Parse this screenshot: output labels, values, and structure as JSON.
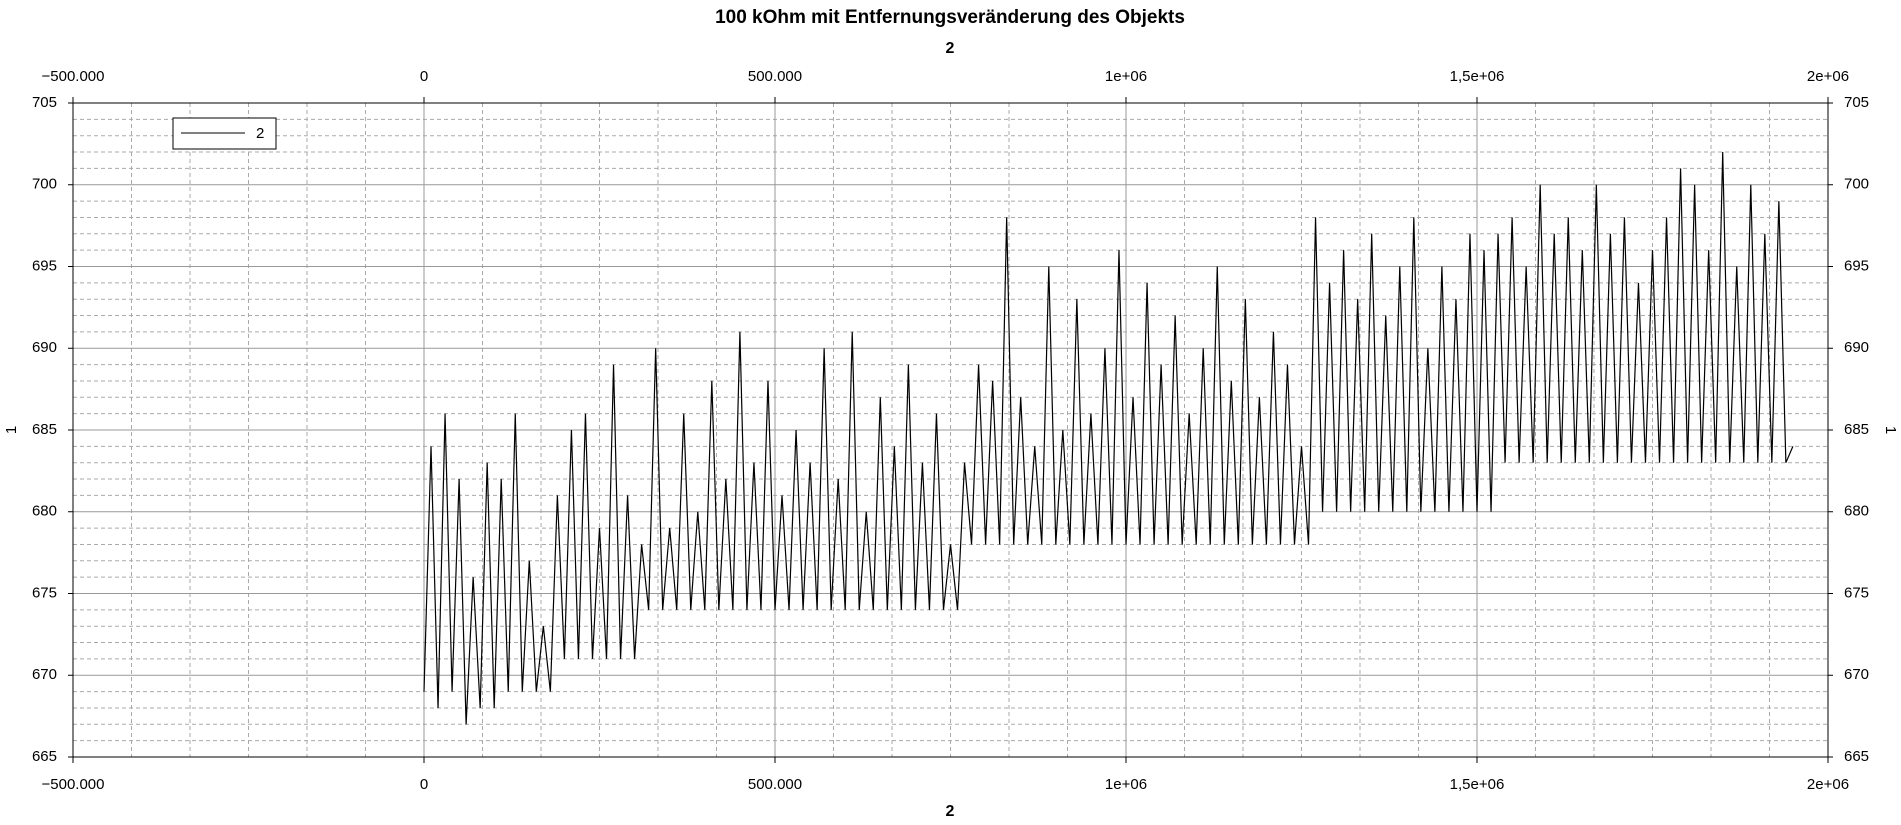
{
  "chart_data": {
    "type": "line",
    "title": "100 kOhm mit Entfernungsveränderung des Objekts",
    "x_label": "2",
    "y_label": "1",
    "xlim": [
      -500000,
      2000000
    ],
    "xticks": [
      {
        "value": -500000,
        "label": "−500.000"
      },
      0,
      {
        "value": 500000,
        "label": "500.000"
      },
      {
        "value": 1000000,
        "label": "1e+06"
      },
      {
        "value": 1500000,
        "label": "1,5e+06"
      },
      {
        "value": 2000000,
        "label": "2e+06"
      }
    ],
    "ylim": [
      665,
      705
    ],
    "yticks": [
      665,
      670,
      675,
      680,
      685,
      690,
      695,
      700,
      705
    ],
    "grid": true,
    "legend": "top-left",
    "x": [
      0,
      10000,
      20000,
      30000,
      40000,
      50000,
      60000,
      70000,
      80000,
      90000,
      100000,
      110000,
      120000,
      130000,
      140000,
      150000,
      160000,
      170000,
      180000,
      190000,
      200000,
      210000,
      220000,
      230000,
      240000,
      250000,
      260000,
      270000,
      280000,
      290000,
      300000,
      310000,
      320000,
      330000,
      340000,
      350000,
      360000,
      370000,
      380000,
      390000,
      400000,
      410000,
      420000,
      430000,
      440000,
      450000,
      460000,
      470000,
      480000,
      490000,
      500000,
      510000,
      520000,
      530000,
      540000,
      550000,
      560000,
      570000,
      580000,
      590000,
      600000,
      610000,
      620000,
      630000,
      640000,
      650000,
      660000,
      670000,
      680000,
      690000,
      700000,
      710000,
      720000,
      730000,
      740000,
      750000,
      760000,
      770000,
      780000,
      790000,
      800000,
      810000,
      820000,
      830000,
      840000,
      850000,
      860000,
      870000,
      880000,
      890000,
      900000,
      910000,
      920000,
      930000,
      940000,
      950000,
      960000,
      970000,
      980000,
      990000,
      1000000,
      1010000,
      1020000,
      1030000,
      1040000,
      1050000,
      1060000,
      1070000,
      1080000,
      1090000,
      1100000,
      1110000,
      1120000,
      1130000,
      1140000,
      1150000,
      1160000,
      1170000,
      1180000,
      1190000,
      1200000,
      1210000,
      1220000,
      1230000,
      1240000,
      1250000,
      1260000,
      1270000,
      1280000,
      1290000,
      1300000,
      1310000,
      1320000,
      1330000,
      1340000,
      1350000,
      1360000,
      1370000,
      1380000,
      1390000,
      1400000,
      1410000,
      1420000,
      1430000,
      1440000,
      1450000,
      1460000,
      1470000,
      1480000,
      1490000,
      1500000,
      1510000,
      1520000,
      1530000,
      1540000,
      1550000,
      1560000,
      1570000,
      1580000,
      1590000,
      1600000,
      1610000,
      1620000,
      1630000,
      1640000,
      1650000,
      1660000,
      1670000,
      1680000,
      1690000,
      1700000,
      1710000,
      1720000,
      1730000,
      1740000,
      1750000,
      1760000,
      1770000,
      1780000,
      1790000,
      1800000,
      1810000,
      1820000,
      1830000,
      1840000,
      1850000,
      1860000,
      1870000,
      1880000,
      1890000,
      1900000,
      1910000,
      1920000,
      1930000,
      1940000,
      1950000
    ],
    "series": [
      {
        "name": "2",
        "color": "#000000",
        "values": [
          669,
          684,
          668,
          686,
          669,
          682,
          667,
          676,
          668,
          683,
          668,
          682,
          669,
          686,
          669,
          677,
          669,
          673,
          669,
          681,
          671,
          685,
          671,
          686,
          671,
          679,
          671,
          689,
          671,
          681,
          671,
          678,
          674,
          690,
          674,
          679,
          674,
          686,
          674,
          680,
          674,
          688,
          674,
          682,
          674,
          691,
          674,
          683,
          674,
          688,
          674,
          681,
          674,
          685,
          674,
          683,
          674,
          690,
          674,
          682,
          674,
          691,
          674,
          680,
          674,
          687,
          674,
          684,
          674,
          689,
          674,
          683,
          674,
          686,
          674,
          678,
          674,
          683,
          678,
          689,
          678,
          688,
          678,
          698,
          678,
          687,
          678,
          684,
          678,
          695,
          678,
          685,
          678,
          693,
          678,
          686,
          678,
          690,
          678,
          696,
          678,
          687,
          678,
          694,
          678,
          689,
          678,
          692,
          678,
          686,
          678,
          690,
          678,
          695,
          678,
          688,
          678,
          693,
          678,
          687,
          678,
          691,
          678,
          689,
          678,
          684,
          678,
          698,
          680,
          694,
          680,
          696,
          680,
          693,
          680,
          697,
          680,
          692,
          680,
          695,
          680,
          698,
          680,
          690,
          680,
          695,
          680,
          693,
          680,
          697,
          680,
          696,
          680,
          697,
          683,
          698,
          683,
          695,
          683,
          700,
          683,
          697,
          683,
          698,
          683,
          696,
          683,
          700,
          683,
          697,
          683,
          698,
          683,
          694,
          683,
          696,
          683,
          698,
          683,
          701,
          683,
          700,
          683,
          696,
          683,
          702,
          683,
          695,
          683,
          700,
          683,
          697,
          683,
          699,
          683,
          684
        ]
      }
    ]
  }
}
